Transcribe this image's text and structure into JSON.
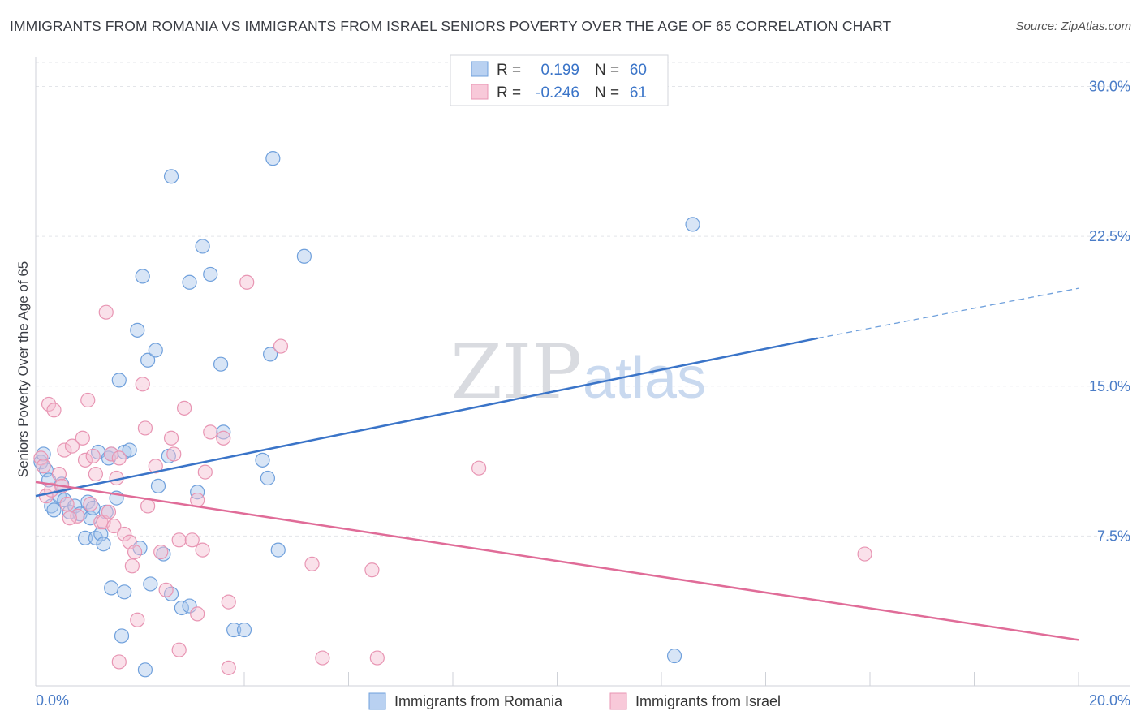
{
  "header": {
    "title": "IMMIGRANTS FROM ROMANIA VS IMMIGRANTS FROM ISRAEL SENIORS POVERTY OVER THE AGE OF 65 CORRELATION CHART",
    "source": "Source: ZipAtlas.com"
  },
  "watermark": {
    "zip": "ZIP",
    "atlas": "atlas"
  },
  "chart_data": {
    "type": "scatter",
    "title": "IMMIGRANTS FROM ROMANIA VS IMMIGRANTS FROM ISRAEL SENIORS POVERTY OVER THE AGE OF 65 CORRELATION CHART",
    "xlabel": "",
    "ylabel": "Seniors Poverty Over the Age of 65",
    "xlim": [
      0,
      20
    ],
    "ylim": [
      0,
      31.2
    ],
    "x_tick_labels": [
      "0.0%",
      "20.0%"
    ],
    "y_ticks": [
      7.5,
      15.0,
      22.5,
      30.0
    ],
    "y_tick_labels": [
      "7.5%",
      "15.0%",
      "22.5%",
      "30.0%"
    ],
    "grid": true,
    "legend_position": "top-center",
    "stats": [
      {
        "r_label": "R =",
        "r_value": "0.199",
        "n_label": "N =",
        "n_value": "60"
      },
      {
        "r_label": "R =",
        "r_value": "-0.246",
        "n_label": "N =",
        "n_value": "61"
      }
    ],
    "series": [
      {
        "name": "Immigrants from Romania",
        "color": "#6fa0dc",
        "fill": "#a9c6ec",
        "trend": {
          "x": [
            0.0,
            15.0
          ],
          "y": [
            9.5,
            17.4
          ],
          "dashed_to": [
            20.0,
            19.9
          ]
        },
        "points": [
          [
            0.1,
            11.2
          ],
          [
            0.15,
            11.6
          ],
          [
            0.2,
            10.8
          ],
          [
            0.25,
            10.3
          ],
          [
            0.3,
            9.0
          ],
          [
            0.35,
            8.8
          ],
          [
            0.45,
            9.5
          ],
          [
            0.5,
            10.1
          ],
          [
            0.55,
            9.3
          ],
          [
            0.65,
            8.7
          ],
          [
            0.75,
            9.0
          ],
          [
            0.85,
            8.6
          ],
          [
            0.95,
            7.4
          ],
          [
            1.0,
            9.2
          ],
          [
            1.05,
            8.4
          ],
          [
            1.1,
            8.9
          ],
          [
            1.15,
            7.4
          ],
          [
            1.25,
            7.6
          ],
          [
            1.3,
            7.1
          ],
          [
            1.2,
            11.7
          ],
          [
            1.4,
            11.4
          ],
          [
            1.45,
            11.6
          ],
          [
            1.55,
            9.4
          ],
          [
            1.6,
            15.3
          ],
          [
            1.7,
            11.7
          ],
          [
            1.8,
            11.8
          ],
          [
            1.95,
            17.8
          ],
          [
            2.05,
            20.5
          ],
          [
            2.15,
            16.3
          ],
          [
            2.3,
            16.8
          ],
          [
            2.35,
            10.0
          ],
          [
            2.45,
            6.6
          ],
          [
            2.55,
            11.5
          ],
          [
            2.6,
            25.5
          ],
          [
            2.95,
            20.2
          ],
          [
            3.2,
            22.0
          ],
          [
            3.35,
            20.6
          ],
          [
            3.1,
            9.7
          ],
          [
            3.55,
            16.1
          ],
          [
            3.6,
            12.7
          ],
          [
            4.35,
            11.3
          ],
          [
            4.45,
            10.4
          ],
          [
            4.5,
            16.6
          ],
          [
            4.55,
            26.4
          ],
          [
            4.65,
            6.8
          ],
          [
            5.15,
            21.5
          ],
          [
            1.45,
            4.9
          ],
          [
            1.7,
            4.7
          ],
          [
            1.65,
            2.5
          ],
          [
            2.2,
            5.1
          ],
          [
            2.6,
            4.6
          ],
          [
            2.8,
            3.9
          ],
          [
            2.95,
            4.0
          ],
          [
            3.8,
            2.8
          ],
          [
            4.0,
            2.8
          ],
          [
            2.1,
            0.8
          ],
          [
            2.0,
            6.9
          ],
          [
            1.35,
            8.7
          ],
          [
            12.25,
            1.5
          ],
          [
            12.6,
            23.1
          ]
        ]
      },
      {
        "name": "Immigrants from Israel",
        "color": "#e895b3",
        "fill": "#f4bdd0",
        "trend": {
          "x": [
            0.0,
            20.0
          ],
          "y": [
            10.2,
            2.3
          ]
        },
        "points": [
          [
            0.1,
            11.4
          ],
          [
            0.15,
            11.0
          ],
          [
            0.2,
            9.5
          ],
          [
            0.25,
            14.1
          ],
          [
            0.3,
            9.8
          ],
          [
            0.35,
            13.8
          ],
          [
            0.45,
            10.6
          ],
          [
            0.5,
            10.0
          ],
          [
            0.55,
            11.8
          ],
          [
            0.6,
            9.1
          ],
          [
            0.7,
            12.0
          ],
          [
            0.8,
            8.5
          ],
          [
            0.9,
            12.4
          ],
          [
            0.95,
            11.3
          ],
          [
            1.0,
            14.3
          ],
          [
            1.05,
            9.1
          ],
          [
            1.1,
            11.5
          ],
          [
            1.15,
            10.6
          ],
          [
            1.25,
            8.2
          ],
          [
            1.3,
            8.2
          ],
          [
            1.35,
            18.7
          ],
          [
            1.4,
            8.7
          ],
          [
            1.45,
            11.6
          ],
          [
            1.5,
            8.0
          ],
          [
            1.55,
            10.4
          ],
          [
            1.6,
            11.4
          ],
          [
            1.7,
            7.6
          ],
          [
            1.8,
            7.2
          ],
          [
            1.85,
            6.0
          ],
          [
            1.9,
            6.7
          ],
          [
            2.05,
            15.1
          ],
          [
            2.1,
            12.9
          ],
          [
            2.15,
            9.0
          ],
          [
            2.3,
            11.0
          ],
          [
            2.5,
            4.8
          ],
          [
            2.6,
            12.4
          ],
          [
            2.65,
            11.6
          ],
          [
            2.75,
            7.3
          ],
          [
            2.85,
            13.9
          ],
          [
            3.0,
            7.3
          ],
          [
            3.1,
            9.3
          ],
          [
            3.2,
            6.8
          ],
          [
            3.25,
            10.7
          ],
          [
            3.35,
            12.7
          ],
          [
            3.6,
            12.4
          ],
          [
            3.7,
            4.2
          ],
          [
            4.05,
            20.2
          ],
          [
            4.7,
            17.0
          ],
          [
            5.3,
            6.1
          ],
          [
            5.5,
            1.4
          ],
          [
            6.45,
            5.8
          ],
          [
            6.55,
            1.4
          ],
          [
            8.5,
            10.9
          ],
          [
            15.9,
            6.6
          ],
          [
            1.6,
            1.2
          ],
          [
            1.95,
            3.3
          ],
          [
            2.75,
            1.8
          ],
          [
            3.1,
            3.6
          ],
          [
            3.7,
            0.9
          ],
          [
            2.4,
            6.7
          ],
          [
            0.65,
            8.4
          ]
        ]
      }
    ]
  }
}
